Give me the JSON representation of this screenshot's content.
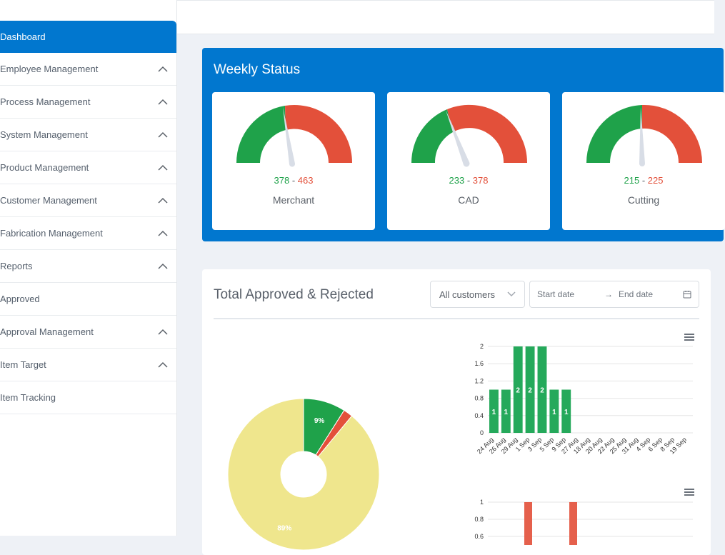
{
  "sidebar": {
    "items": [
      {
        "label": "Dashboard",
        "active": true,
        "expandable": false
      },
      {
        "label": "Employee Management",
        "expandable": true
      },
      {
        "label": "Process Management",
        "expandable": true
      },
      {
        "label": "System Management",
        "expandable": true
      },
      {
        "label": "Product Management",
        "expandable": true
      },
      {
        "label": "Customer Management",
        "expandable": true
      },
      {
        "label": "Fabrication Management",
        "expandable": true
      },
      {
        "label": "Reports",
        "expandable": true
      },
      {
        "label": "Approved",
        "expandable": false
      },
      {
        "label": "Approval Management",
        "expandable": true
      },
      {
        "label": "Item Target",
        "expandable": true
      },
      {
        "label": "Item Tracking",
        "expandable": false
      }
    ]
  },
  "weekly": {
    "title": "Weekly Status",
    "gauges": [
      {
        "name": "Merchant",
        "value": "378",
        "separator": "-",
        "total": "463"
      },
      {
        "name": "CAD",
        "value": "233",
        "separator": "-",
        "total": "378"
      },
      {
        "name": "Cutting",
        "value": "215",
        "separator": "-",
        "total": "225"
      }
    ]
  },
  "approved": {
    "title": "Total Approved & Rejected",
    "customer_select": "All customers",
    "start_placeholder": "Start date",
    "arrow": "→",
    "end_placeholder": "End date"
  },
  "colors": {
    "primary": "#0177cf",
    "green": "#1fa24a",
    "red": "#e3503a",
    "pie_yellow": "#efe68d",
    "bar_green": "#25a95b",
    "bar_red": "#e5604c"
  },
  "chart_data": [
    {
      "type": "pie",
      "labels": [
        "9%",
        "89%"
      ],
      "slices": [
        {
          "value": 9,
          "color": "#1fa24a",
          "label": "9%"
        },
        {
          "value": 2,
          "color": "#e3503a",
          "label": ""
        },
        {
          "value": 89,
          "color": "#efe68d",
          "label": "89%"
        }
      ]
    },
    {
      "type": "bar",
      "categories": [
        "24 Aug",
        "26 Aug",
        "29 Aug",
        "1 Sep",
        "3 Sep",
        "5 Sep",
        "9 Sep",
        "27 Aug",
        "18 Aug",
        "20 Aug",
        "22 Aug",
        "25 Aug",
        "31 Aug",
        "4 Sep",
        "6 Sep",
        "8 Sep",
        "19 Sep"
      ],
      "values": [
        1,
        1,
        2,
        2,
        2,
        1,
        1,
        0,
        0,
        0,
        0,
        0,
        0,
        0,
        0,
        0,
        0
      ],
      "ylim": [
        0,
        2
      ],
      "yticks": [
        "0",
        "0.4",
        "0.8",
        "1.2",
        "1.6",
        "2"
      ],
      "grid": true
    },
    {
      "type": "bar",
      "yticks": [
        "0.6",
        "0.8",
        "1"
      ],
      "ylim": [
        0.6,
        1
      ]
    }
  ]
}
